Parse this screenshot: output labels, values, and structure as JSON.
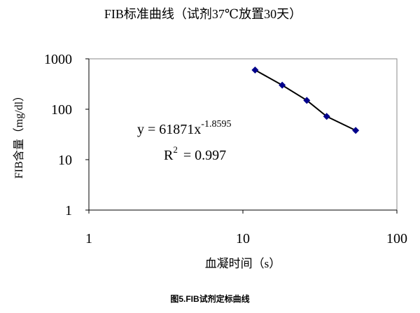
{
  "chart_data": {
    "type": "scatter",
    "title": "FIB标准曲线（试剂37℃放置30天）",
    "x_label": "血凝时间（s）",
    "y_label": "FIB含量（mg/dl）",
    "caption": "图5.FIB试剂定标曲线",
    "x_scale": "log",
    "y_scale": "log",
    "xlim": [
      1,
      100
    ],
    "ylim": [
      1,
      1000
    ],
    "xticks": [
      1,
      10,
      100
    ],
    "yticks": [
      1,
      10,
      100,
      1000
    ],
    "series": [
      {
        "color": "#00008b",
        "line_color": "#000000",
        "x": [
          12,
          18,
          26,
          35,
          54
        ],
        "values": [
          600,
          300,
          150,
          72,
          38
        ]
      }
    ],
    "annotations": {
      "equation": "y = 61871x",
      "exponent": "-1.8595",
      "r_label": "R",
      "r_power": "2",
      "r_value": "= 0.997"
    }
  }
}
